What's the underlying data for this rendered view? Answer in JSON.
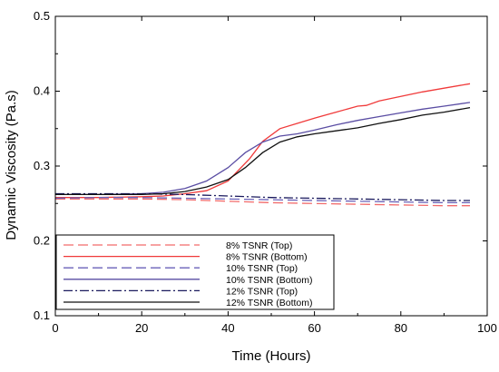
{
  "chart_data": {
    "type": "line",
    "xlabel": "Time (Hours)",
    "ylabel": "Dynamic Viscosity (Pa.s)",
    "xlim": [
      0,
      100
    ],
    "ylim": [
      0.1,
      0.5
    ],
    "xticks": [
      "0",
      "20",
      "40",
      "60",
      "80",
      "100"
    ],
    "yticks": [
      "0.1",
      "0.2",
      "0.3",
      "0.4",
      "0.5"
    ],
    "grid": false,
    "legend_position": "bottom-left",
    "series": [
      {
        "name": "8% TSNR (Top)",
        "color": "#f26b6b",
        "dash": "long-dash",
        "x": [
          0,
          10,
          20,
          30,
          40,
          50,
          60,
          70,
          80,
          90,
          96
        ],
        "y": [
          0.256,
          0.256,
          0.256,
          0.255,
          0.253,
          0.251,
          0.25,
          0.249,
          0.248,
          0.247,
          0.247
        ]
      },
      {
        "name": "8% TSNR (Bottom)",
        "color": "#f03a3a",
        "dash": "solid",
        "x": [
          0,
          10,
          20,
          25,
          30,
          35,
          40,
          45,
          48,
          52,
          56,
          60,
          65,
          70,
          72,
          75,
          80,
          85,
          90,
          96
        ],
        "y": [
          0.258,
          0.258,
          0.259,
          0.26,
          0.263,
          0.267,
          0.28,
          0.31,
          0.333,
          0.35,
          0.357,
          0.364,
          0.372,
          0.38,
          0.381,
          0.387,
          0.393,
          0.399,
          0.404,
          0.41
        ]
      },
      {
        "name": "10% TSNR (Top)",
        "color": "#6a62b8",
        "dash": "long-dash",
        "x": [
          0,
          10,
          20,
          30,
          40,
          50,
          60,
          70,
          80,
          90,
          96
        ],
        "y": [
          0.257,
          0.258,
          0.258,
          0.257,
          0.256,
          0.255,
          0.254,
          0.253,
          0.252,
          0.251,
          0.251
        ]
      },
      {
        "name": "10% TSNR (Bottom)",
        "color": "#5a4da3",
        "dash": "solid",
        "x": [
          0,
          10,
          20,
          25,
          30,
          35,
          40,
          44,
          48,
          52,
          56,
          60,
          65,
          70,
          75,
          80,
          85,
          90,
          96
        ],
        "y": [
          0.262,
          0.262,
          0.263,
          0.265,
          0.27,
          0.28,
          0.298,
          0.318,
          0.332,
          0.34,
          0.343,
          0.348,
          0.355,
          0.361,
          0.366,
          0.371,
          0.376,
          0.38,
          0.385
        ]
      },
      {
        "name": "12% TSNR (Top)",
        "color": "#1a1a5e",
        "dash": "dash-dot",
        "x": [
          0,
          10,
          20,
          30,
          40,
          50,
          60,
          70,
          80,
          90,
          96
        ],
        "y": [
          0.263,
          0.263,
          0.263,
          0.262,
          0.26,
          0.258,
          0.257,
          0.256,
          0.255,
          0.254,
          0.254
        ]
      },
      {
        "name": "12% TSNR (Bottom)",
        "color": "#111111",
        "dash": "solid",
        "x": [
          0,
          10,
          20,
          25,
          30,
          35,
          40,
          44,
          48,
          52,
          56,
          60,
          65,
          70,
          75,
          80,
          85,
          90,
          96
        ],
        "y": [
          0.262,
          0.262,
          0.262,
          0.263,
          0.266,
          0.272,
          0.282,
          0.298,
          0.318,
          0.332,
          0.339,
          0.343,
          0.347,
          0.351,
          0.357,
          0.362,
          0.368,
          0.372,
          0.378
        ]
      }
    ]
  }
}
